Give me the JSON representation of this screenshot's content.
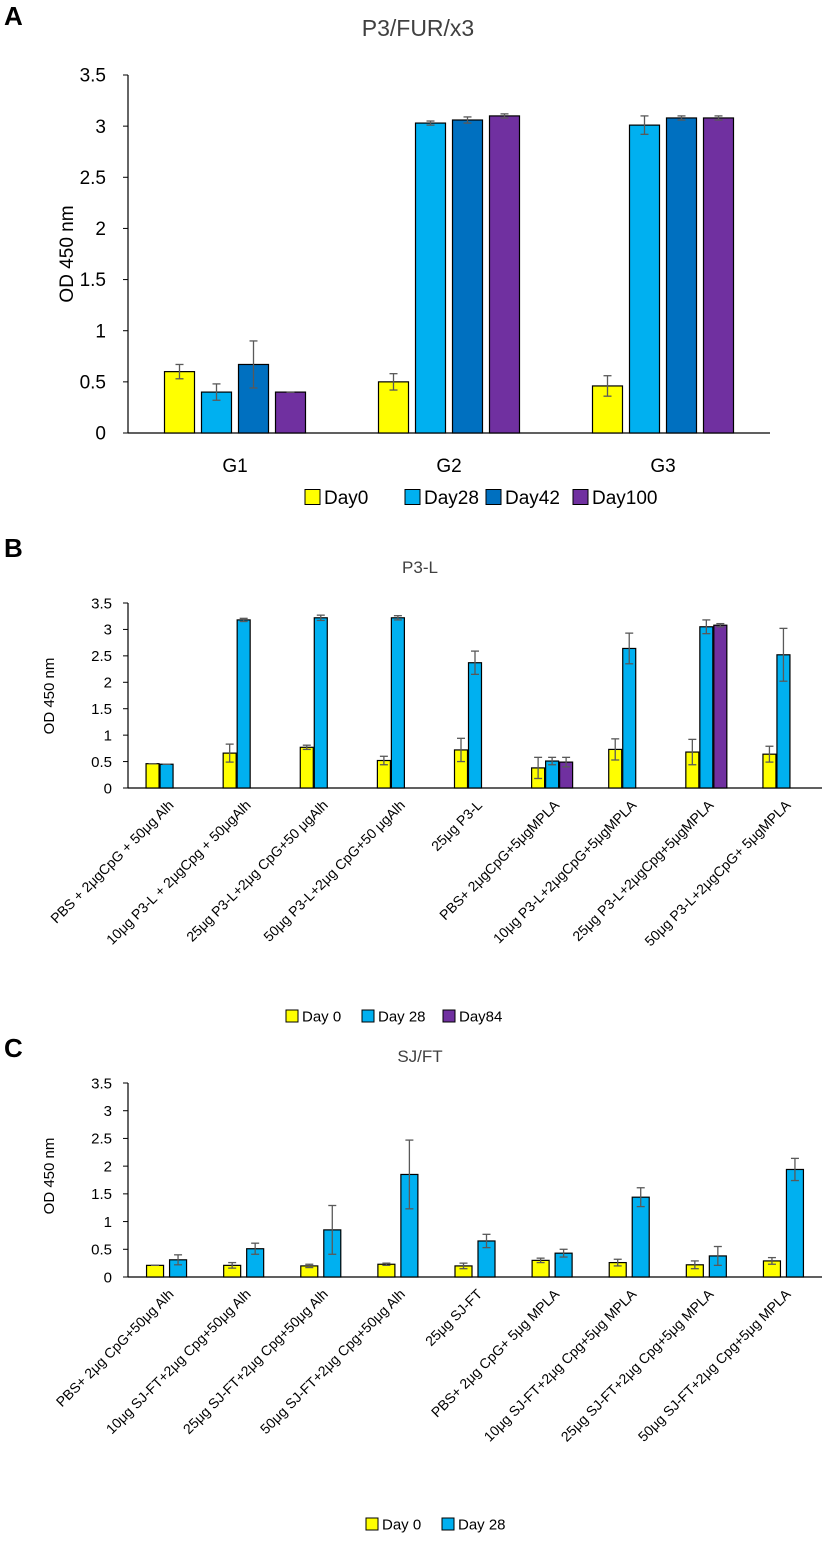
{
  "chart_data": [
    {
      "panel": "A",
      "type": "bar",
      "title": "P3/FUR/x3",
      "xlabel": "",
      "ylabel": "OD 450 nm",
      "ylim": [
        0,
        3.5
      ],
      "yticks": [
        "0",
        "0.5",
        "1",
        "1.5",
        "2",
        "2.5",
        "3",
        "3.5"
      ],
      "categories": [
        "G1",
        "G2",
        "G3"
      ],
      "series": [
        {
          "name": "Day0",
          "color": "#ffff00",
          "values": [
            0.6,
            0.5,
            0.46
          ],
          "errors": [
            0.07,
            0.08,
            0.1
          ]
        },
        {
          "name": "Day28",
          "color": "#00b0f0",
          "values": [
            0.4,
            3.03,
            3.01
          ],
          "errors": [
            0.08,
            0.02,
            0.09
          ]
        },
        {
          "name": "Day42",
          "color": "#0070c0",
          "values": [
            0.67,
            3.06,
            3.08
          ],
          "errors": [
            0.23,
            0.03,
            0.02
          ]
        },
        {
          "name": "Day100",
          "color": "#7030a0",
          "values": [
            0.4,
            3.1,
            3.08
          ],
          "errors": [
            0.0,
            0.02,
            0.02
          ]
        }
      ],
      "legend_position": "bottom"
    },
    {
      "panel": "B",
      "type": "bar",
      "title": "P3-L",
      "xlabel": "",
      "ylabel": "OD 450 nm",
      "ylim": [
        0,
        3.5
      ],
      "yticks": [
        "0",
        "0.5",
        "1",
        "1.5",
        "2",
        "2.5",
        "3",
        "3.5"
      ],
      "categories": [
        "PBS + 2μgCpG + 50μg Alh",
        "10μg P3-L + 2μgCpg + 50μgAlh",
        "25μg P3-L+2μg CpG+50 μgAlh",
        "50μg P3-L+2μg CpG+50 μgAlh",
        "25μg P3-L",
        "PBS+ 2μgCpG+5μgMPLA",
        "10μg P3-L+2μgCpG+5μgMPLA",
        "25μg P3-L+2μgCpg+5μgMPLA",
        "50μg P3-L+2μgCpG+ 5μgMPLA"
      ],
      "series": [
        {
          "name": "Day 0",
          "color": "#ffff00",
          "values": [
            0.46,
            0.66,
            0.77,
            0.52,
            0.72,
            0.38,
            0.73,
            0.68,
            0.64
          ],
          "errors": [
            0.0,
            0.17,
            0.04,
            0.08,
            0.22,
            0.2,
            0.2,
            0.24,
            0.15
          ]
        },
        {
          "name": "Day 28",
          "color": "#00b0f0",
          "values": [
            0.45,
            3.18,
            3.22,
            3.22,
            2.37,
            0.51,
            2.64,
            3.05,
            2.52
          ],
          "errors": [
            0.0,
            0.03,
            0.05,
            0.04,
            0.22,
            0.07,
            0.29,
            0.13,
            0.5
          ]
        },
        {
          "name": "Day84",
          "color": "#7030a0",
          "values": [
            null,
            null,
            null,
            null,
            null,
            0.49,
            null,
            3.08,
            null
          ],
          "errors": [
            null,
            null,
            null,
            null,
            null,
            0.09,
            null,
            0.03,
            null
          ]
        }
      ],
      "legend_position": "bottom"
    },
    {
      "panel": "C",
      "type": "bar",
      "title": "SJ/FT",
      "xlabel": "",
      "ylabel": "OD 450 nm",
      "ylim": [
        0,
        3.5
      ],
      "yticks": [
        "0",
        "0.5",
        "1",
        "1.5",
        "2",
        "2.5",
        "3",
        "3.5"
      ],
      "categories": [
        "PBS+ 2μg CpG+50μg Alh",
        "10μg SJ-FT+2μg Cpg+50μg Alh",
        "25μg SJ-FT+2μg Cpg+50μg Alh",
        "50μg SJ-FT+2μg Cpg+50μg Alh",
        "25μg SJ-FT",
        "PBS+ 2μg CpG+ 5μg MPLA",
        "10μg SJ-FT+2μg Cpg+5μg MPLA",
        "25μg SJ-FT+2μg Cpg+5μg MPLA",
        "50μg SJ-FT+2μg Cpg+5μg MPLA"
      ],
      "series": [
        {
          "name": "Day 0",
          "color": "#ffff00",
          "values": [
            0.21,
            0.21,
            0.2,
            0.23,
            0.2,
            0.3,
            0.26,
            0.22,
            0.29
          ],
          "errors": [
            0.0,
            0.05,
            0.03,
            0.02,
            0.05,
            0.04,
            0.06,
            0.07,
            0.06
          ]
        },
        {
          "name": "Day 28",
          "color": "#00b0f0",
          "values": [
            0.31,
            0.51,
            0.85,
            1.85,
            0.65,
            0.43,
            1.44,
            0.38,
            1.94
          ],
          "errors": [
            0.09,
            0.1,
            0.44,
            0.62,
            0.12,
            0.07,
            0.17,
            0.17,
            0.2
          ]
        }
      ],
      "legend_position": "bottom"
    }
  ]
}
